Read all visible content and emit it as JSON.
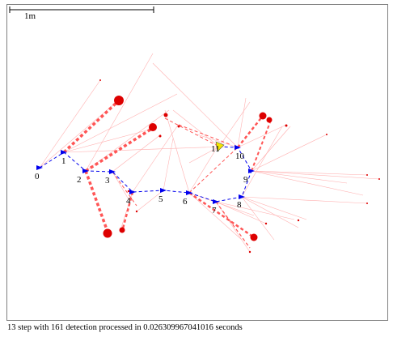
{
  "scale_bar": {
    "label": "1m"
  },
  "trajectory": {
    "pose_labels": [
      "0",
      "1",
      "2",
      "3",
      "4",
      "5",
      "6",
      "7",
      "8",
      "9",
      "10",
      "11"
    ],
    "current_pose_label": "11"
  },
  "status": {
    "text": "13 step with 161 detection processed in 0.026309967041016 seconds"
  },
  "colors": {
    "frame_border": "#7f7f7f",
    "trajectory_edge": "#0000ee",
    "pose_marker": "#0000ee",
    "current_pose_marker": "#f2e600",
    "landmark": "#dd0000",
    "observation_ray": "#ffb0b0",
    "strong_constraint": "#ff5555",
    "scale_bar": "#000000"
  }
}
